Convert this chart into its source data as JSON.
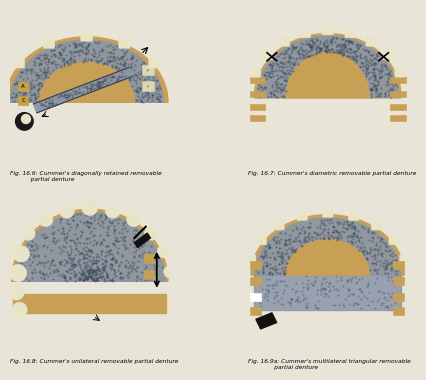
{
  "bg_color": "#e8e4d8",
  "panel_bg": "#e8e4d8",
  "arch_gray": "#8a96a8",
  "arch_gray_dark": "#6a7888",
  "palate_tan": "#c8a055",
  "tooth_cream": "#ddd8b0",
  "tooth_cream2": "#e8e4c8",
  "connector_tan": "#c8a055",
  "captions": [
    "Fig. 16.6: Cummer's diagonally retained removable\n           partial denture",
    "Fig. 16.7: Cummer's diametric removable partial denture",
    "Fig. 16.8: Cummer's unilateral removable partial denture",
    "Fig. 16.9a: Cummer's multilateral triangular removable\n              partial denture"
  ]
}
